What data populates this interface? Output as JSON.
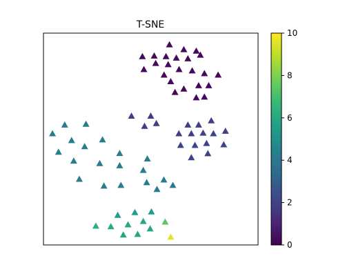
{
  "chart_data": {
    "type": "scatter",
    "title": "T-SNE",
    "xlabel": "",
    "ylabel": "",
    "xlim": [
      0,
      100
    ],
    "ylim": [
      0,
      100
    ],
    "x_ticks": [],
    "y_ticks": [],
    "marker": "triangle",
    "grid": false,
    "colorbar": {
      "colormap": "viridis",
      "range": [
        0,
        10
      ],
      "ticks": [
        "0",
        "2",
        "4",
        "6",
        "8",
        "10"
      ],
      "stops": [
        "#440154",
        "#482878",
        "#3e4989",
        "#31688e",
        "#26828e",
        "#1f9e89",
        "#35b779",
        "#6ece58",
        "#b5de2b",
        "#fde725"
      ]
    },
    "points": [
      {
        "x": 46.1,
        "y": 89.0,
        "c": 0.2
      },
      {
        "x": 51.6,
        "y": 89.3,
        "c": 0.2
      },
      {
        "x": 46.8,
        "y": 82.9,
        "c": 0.2
      },
      {
        "x": 52.3,
        "y": 85.8,
        "c": 0.2
      },
      {
        "x": 57.1,
        "y": 89.0,
        "c": 0.2
      },
      {
        "x": 58.7,
        "y": 94.6,
        "c": 0.2
      },
      {
        "x": 61.9,
        "y": 88.3,
        "c": 0.2
      },
      {
        "x": 65.4,
        "y": 92.3,
        "c": 0.2
      },
      {
        "x": 58.1,
        "y": 85.2,
        "c": 0.2
      },
      {
        "x": 67.3,
        "y": 88.0,
        "c": 0.2
      },
      {
        "x": 71.2,
        "y": 91.6,
        "c": 0.2
      },
      {
        "x": 63.2,
        "y": 82.9,
        "c": 0.2
      },
      {
        "x": 73.1,
        "y": 89.7,
        "c": 0.2
      },
      {
        "x": 56.2,
        "y": 80.3,
        "c": 0.2
      },
      {
        "x": 59.3,
        "y": 77.2,
        "c": 0.2
      },
      {
        "x": 69.3,
        "y": 82.3,
        "c": 0.2
      },
      {
        "x": 75.0,
        "y": 81.0,
        "c": 0.2
      },
      {
        "x": 61.3,
        "y": 72.1,
        "c": 0.2
      },
      {
        "x": 65.4,
        "y": 73.7,
        "c": 0.2
      },
      {
        "x": 72.3,
        "y": 75.3,
        "c": 0.2
      },
      {
        "x": 81.4,
        "y": 80.3,
        "c": 0.2
      },
      {
        "x": 77.0,
        "y": 75.3,
        "c": 0.2
      },
      {
        "x": 75.0,
        "y": 69.9,
        "c": 0.2
      },
      {
        "x": 71.2,
        "y": 69.6,
        "c": 0.2
      },
      {
        "x": 41.0,
        "y": 60.9,
        "c": 1.8
      },
      {
        "x": 50.0,
        "y": 60.9,
        "c": 1.8
      },
      {
        "x": 47.1,
        "y": 56.1,
        "c": 1.8
      },
      {
        "x": 52.6,
        "y": 57.4,
        "c": 1.8
      },
      {
        "x": 72.3,
        "y": 56.7,
        "c": 1.9
      },
      {
        "x": 78.2,
        "y": 58.7,
        "c": 1.9
      },
      {
        "x": 67.3,
        "y": 56.7,
        "c": 1.9
      },
      {
        "x": 63.1,
        "y": 52.6,
        "c": 1.9
      },
      {
        "x": 68.9,
        "y": 52.6,
        "c": 1.9
      },
      {
        "x": 74.4,
        "y": 52.9,
        "c": 2.0
      },
      {
        "x": 79.2,
        "y": 52.6,
        "c": 2.0
      },
      {
        "x": 84.8,
        "y": 53.8,
        "c": 2.0
      },
      {
        "x": 70.6,
        "y": 47.1,
        "c": 2.0
      },
      {
        "x": 63.9,
        "y": 47.1,
        "c": 2.0
      },
      {
        "x": 76.0,
        "y": 48.0,
        "c": 2.0
      },
      {
        "x": 84.0,
        "y": 47.4,
        "c": 2.0
      },
      {
        "x": 68.9,
        "y": 41.3,
        "c": 2.0
      },
      {
        "x": 76.6,
        "y": 43.2,
        "c": 2.0
      },
      {
        "x": 4.2,
        "y": 52.6,
        "c": 4.2
      },
      {
        "x": 9.9,
        "y": 56.7,
        "c": 4.2
      },
      {
        "x": 19.8,
        "y": 57.1,
        "c": 4.2
      },
      {
        "x": 13.1,
        "y": 49.4,
        "c": 4.2
      },
      {
        "x": 27.5,
        "y": 49.7,
        "c": 4.2
      },
      {
        "x": 19.2,
        "y": 46.5,
        "c": 4.2
      },
      {
        "x": 7.0,
        "y": 43.9,
        "c": 4.2
      },
      {
        "x": 14.1,
        "y": 39.7,
        "c": 4.2
      },
      {
        "x": 26.2,
        "y": 38.5,
        "c": 4.2
      },
      {
        "x": 35.5,
        "y": 43.3,
        "c": 4.2
      },
      {
        "x": 35.5,
        "y": 37.5,
        "c": 4.2
      },
      {
        "x": 48.4,
        "y": 40.7,
        "c": 4.2
      },
      {
        "x": 16.7,
        "y": 31.1,
        "c": 4.2
      },
      {
        "x": 28.2,
        "y": 27.9,
        "c": 4.2
      },
      {
        "x": 36.1,
        "y": 28.2,
        "c": 4.2
      },
      {
        "x": 46.5,
        "y": 35.3,
        "c": 4.2
      },
      {
        "x": 48.1,
        "y": 29.5,
        "c": 4.2
      },
      {
        "x": 52.9,
        "y": 26.3,
        "c": 4.2
      },
      {
        "x": 56.1,
        "y": 30.8,
        "c": 4.2
      },
      {
        "x": 60.3,
        "y": 28.2,
        "c": 4.2
      },
      {
        "x": 34.6,
        "y": 14.1,
        "c": 5.6
      },
      {
        "x": 42.6,
        "y": 15.4,
        "c": 5.6
      },
      {
        "x": 50.3,
        "y": 15.7,
        "c": 5.6
      },
      {
        "x": 31.4,
        "y": 8.7,
        "c": 6.0
      },
      {
        "x": 39.4,
        "y": 9.6,
        "c": 6.0
      },
      {
        "x": 46.5,
        "y": 11.2,
        "c": 6.0
      },
      {
        "x": 37.2,
        "y": 4.8,
        "c": 5.9
      },
      {
        "x": 43.9,
        "y": 5.1,
        "c": 5.9
      },
      {
        "x": 49.7,
        "y": 7.7,
        "c": 5.9
      },
      {
        "x": 24.4,
        "y": 9.0,
        "c": 6.3
      },
      {
        "x": 56.7,
        "y": 10.9,
        "c": 7.4
      },
      {
        "x": 59.3,
        "y": 3.8,
        "c": 9.6
      }
    ]
  }
}
